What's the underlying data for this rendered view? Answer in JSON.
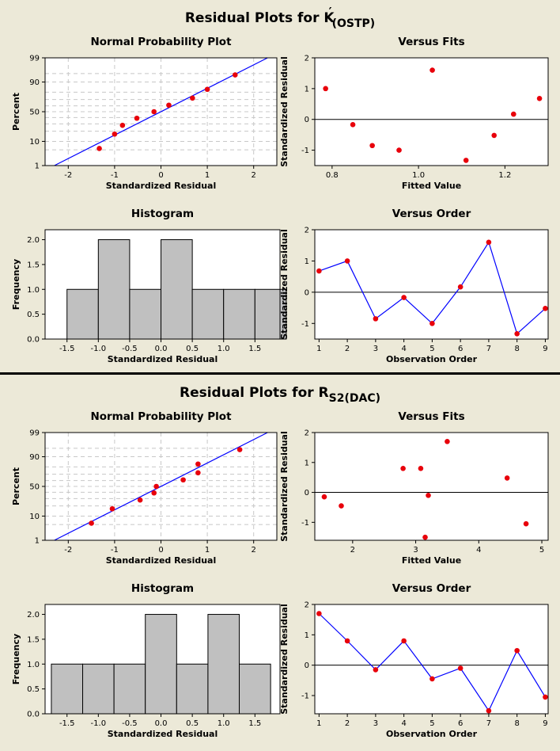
{
  "colors": {
    "background": "#ece9d8",
    "plot_bg": "#ffffff",
    "point": "#e8000b",
    "line": "#0000ff",
    "bar": "#c0c0c0"
  },
  "sections": [
    {
      "title_main": "Residual Plots for K",
      "title_sup": "′",
      "title_sub": "(OSTP)",
      "chart_data": [
        {
          "name": "normal-probability-plot",
          "type": "scatter",
          "title": "Normal Probability Plot",
          "xlabel": "Standardized Residual",
          "ylabel": "Percent",
          "xlim": [
            -2.5,
            2.5
          ],
          "xticks": [
            "-2",
            "-1",
            "0",
            "1",
            "2"
          ],
          "yticks": [
            "1",
            "10",
            "50",
            "90",
            "99"
          ],
          "points": [
            {
              "x": -1.33,
              "y": 5.6
            },
            {
              "x": -1.0,
              "y": 16.7
            },
            {
              "x": -0.83,
              "y": 27.8
            },
            {
              "x": -0.52,
              "y": 38.9
            },
            {
              "x": -0.15,
              "y": 50
            },
            {
              "x": 0.17,
              "y": 61.1
            },
            {
              "x": 0.68,
              "y": 72.2
            },
            {
              "x": 1.0,
              "y": 83.3
            },
            {
              "x": 1.6,
              "y": 94.4
            }
          ],
          "fit_line": {
            "x0": -2.3,
            "y0": 1,
            "x1": 2.3,
            "y1": 99
          }
        },
        {
          "name": "versus-fits",
          "type": "scatter",
          "title": "Versus Fits",
          "xlabel": "Fitted Value",
          "ylabel": "Standardized Residual",
          "xlim": [
            0.76,
            1.3
          ],
          "xticks": [
            "0.8",
            "1.0",
            "1.2"
          ],
          "ylim": [
            -1.5,
            2
          ],
          "yticks": [
            "-1",
            "0",
            "1",
            "2"
          ],
          "points": [
            {
              "x": 0.785,
              "y": 1.0
            },
            {
              "x": 0.848,
              "y": -0.17
            },
            {
              "x": 0.893,
              "y": -0.85
            },
            {
              "x": 0.955,
              "y": -1.0
            },
            {
              "x": 1.032,
              "y": 1.6
            },
            {
              "x": 1.11,
              "y": -1.33
            },
            {
              "x": 1.175,
              "y": -0.52
            },
            {
              "x": 1.22,
              "y": 0.17
            },
            {
              "x": 1.28,
              "y": 0.68
            }
          ]
        },
        {
          "name": "histogram",
          "type": "bar",
          "title": "Histogram",
          "xlabel": "Standardized Residual",
          "ylabel": "Frequency",
          "xlim": [
            -1.85,
            1.9
          ],
          "xticks": [
            "-1.5",
            "-1.0",
            "-0.5",
            "0.0",
            "0.5",
            "1.0",
            "1.5"
          ],
          "ylim": [
            0,
            2.2
          ],
          "yticks": [
            "0.0",
            "0.5",
            "1.0",
            "1.5",
            "2.0"
          ],
          "bins": [
            {
              "center": -1.25,
              "count": 1
            },
            {
              "center": -0.75,
              "count": 2
            },
            {
              "center": -0.25,
              "count": 1
            },
            {
              "center": 0.25,
              "count": 2
            },
            {
              "center": 0.75,
              "count": 1
            },
            {
              "center": 1.25,
              "count": 1
            },
            {
              "center": 1.75,
              "count": 1
            }
          ],
          "bin_width": 0.5
        },
        {
          "name": "versus-order",
          "type": "line",
          "title": "Versus Order",
          "xlabel": "Observation Order",
          "ylabel": "Standardized Residual",
          "xlim": [
            0.85,
            9.1
          ],
          "xticks": [
            "1",
            "2",
            "3",
            "4",
            "5",
            "6",
            "7",
            "8",
            "9"
          ],
          "ylim": [
            -1.5,
            2
          ],
          "yticks": [
            "-1",
            "0",
            "1",
            "2"
          ],
          "values": [
            0.68,
            1.0,
            -0.85,
            -0.17,
            -1.0,
            0.17,
            1.6,
            -1.33,
            -0.52
          ]
        }
      ]
    },
    {
      "title_main": "Residual Plots for R",
      "title_sup": "",
      "title_sub": "S2(DAC)",
      "chart_data": [
        {
          "name": "normal-probability-plot",
          "type": "scatter",
          "title": "Normal Probability Plot",
          "xlabel": "Standardized Residual",
          "ylabel": "Percent",
          "xlim": [
            -2.5,
            2.5
          ],
          "xticks": [
            "-2",
            "-1",
            "0",
            "1",
            "2"
          ],
          "yticks": [
            "1",
            "10",
            "50",
            "90",
            "99"
          ],
          "points": [
            {
              "x": -1.5,
              "y": 5.6
            },
            {
              "x": -1.05,
              "y": 16.7
            },
            {
              "x": -0.45,
              "y": 27.8
            },
            {
              "x": -0.15,
              "y": 38.9
            },
            {
              "x": -0.1,
              "y": 50
            },
            {
              "x": 0.48,
              "y": 61.1
            },
            {
              "x": 0.8,
              "y": 72.2
            },
            {
              "x": 0.8,
              "y": 83.3
            },
            {
              "x": 1.7,
              "y": 94.4
            }
          ],
          "fit_line": {
            "x0": -2.3,
            "y0": 1,
            "x1": 2.3,
            "y1": 99
          }
        },
        {
          "name": "versus-fits",
          "type": "scatter",
          "title": "Versus Fits",
          "xlabel": "Fitted Value",
          "ylabel": "Standardized Residual",
          "xlim": [
            1.4,
            5.1
          ],
          "xticks": [
            "2",
            "3",
            "4",
            "5"
          ],
          "ylim": [
            -1.6,
            2
          ],
          "yticks": [
            "-1",
            "0",
            "1",
            "2"
          ],
          "points": [
            {
              "x": 1.55,
              "y": -0.15
            },
            {
              "x": 1.82,
              "y": -0.45
            },
            {
              "x": 2.8,
              "y": 0.8
            },
            {
              "x": 3.08,
              "y": 0.8
            },
            {
              "x": 3.15,
              "y": -1.5
            },
            {
              "x": 3.2,
              "y": -0.1
            },
            {
              "x": 3.5,
              "y": 1.7
            },
            {
              "x": 4.45,
              "y": 0.48
            },
            {
              "x": 4.75,
              "y": -1.05
            }
          ]
        },
        {
          "name": "histogram",
          "type": "bar",
          "title": "Histogram",
          "xlabel": "Standardized Residual",
          "ylabel": "Frequency",
          "xlim": [
            -1.85,
            1.9
          ],
          "xticks": [
            "-1.5",
            "-1.0",
            "-0.5",
            "0.0",
            "0.5",
            "1.0",
            "1.5"
          ],
          "ylim": [
            0,
            2.2
          ],
          "yticks": [
            "0.0",
            "0.5",
            "1.0",
            "1.5",
            "2.0"
          ],
          "bins": [
            {
              "center": -1.5,
              "count": 1
            },
            {
              "center": -1.0,
              "count": 1
            },
            {
              "center": -0.5,
              "count": 1
            },
            {
              "center": 0.0,
              "count": 2
            },
            {
              "center": 0.5,
              "count": 1
            },
            {
              "center": 1.0,
              "count": 2
            },
            {
              "center": 1.5,
              "count": 1
            }
          ],
          "bin_width": 0.5
        },
        {
          "name": "versus-order",
          "type": "line",
          "title": "Versus Order",
          "xlabel": "Observation Order",
          "ylabel": "Standardized Residual",
          "xlim": [
            0.85,
            9.1
          ],
          "xticks": [
            "1",
            "2",
            "3",
            "4",
            "5",
            "6",
            "7",
            "8",
            "9"
          ],
          "ylim": [
            -1.6,
            2
          ],
          "yticks": [
            "-1",
            "0",
            "1",
            "2"
          ],
          "values": [
            1.7,
            0.8,
            -0.15,
            0.8,
            -0.45,
            -0.1,
            -1.5,
            0.48,
            -1.05
          ]
        }
      ]
    }
  ]
}
